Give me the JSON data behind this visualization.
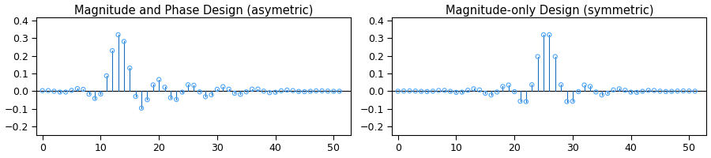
{
  "title1": "Magnitude and Phase Design (asymetric)",
  "title2": "Magnitude-only Design (symmetric)",
  "ylim": [
    -0.25,
    0.42
  ],
  "xlim": [
    -1,
    53
  ],
  "xticks": [
    0,
    10,
    20,
    30,
    40,
    50
  ],
  "yticks": [
    -0.2,
    -0.1,
    0.0,
    0.1,
    0.2,
    0.3,
    0.4
  ],
  "marker_color": "#4DA6FF",
  "stem_color": "#1B6FBF",
  "baseline_color": "#000000",
  "background_color": "#ffffff",
  "title_fontsize": 10.5,
  "tick_fontsize": 9,
  "fig_width": 9.0,
  "fig_height": 2.0,
  "dpi": 100
}
